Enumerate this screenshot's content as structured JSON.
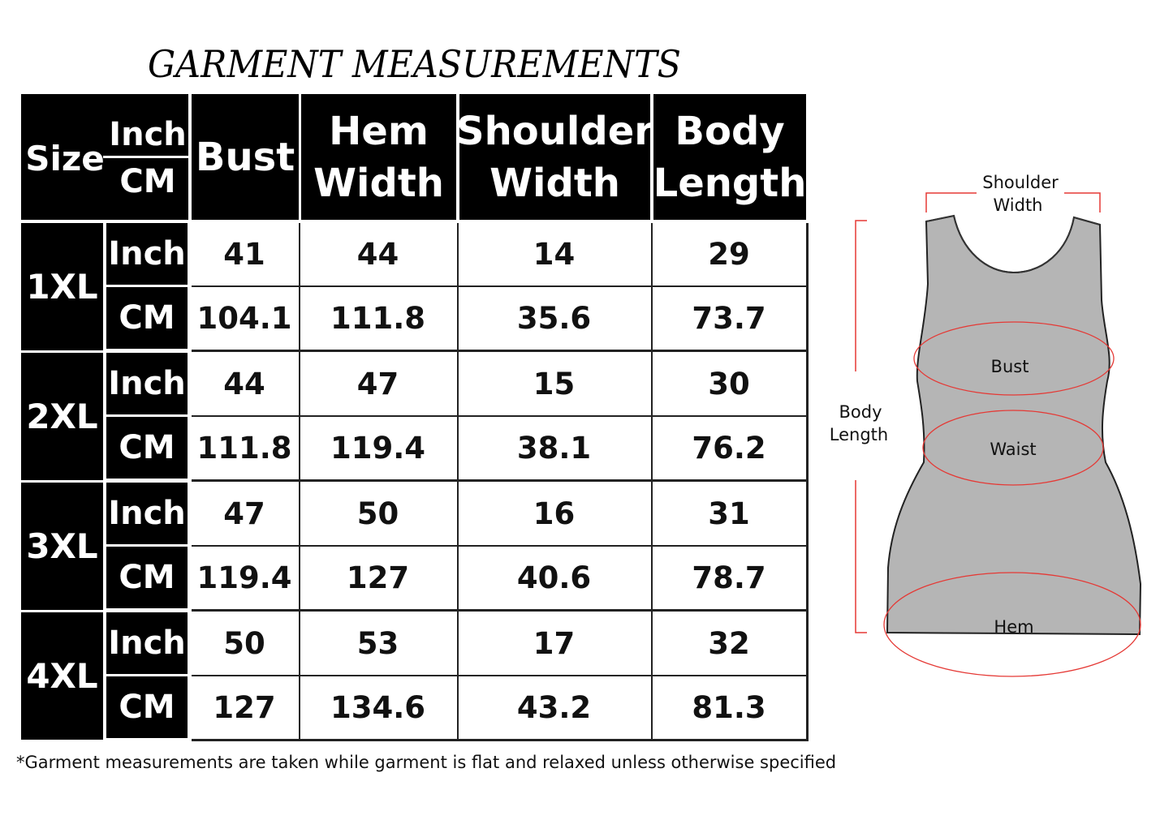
{
  "title": "GARMENT MEASUREMENTS",
  "table": {
    "header": {
      "size": "Size",
      "inch": "Inch",
      "cm": "CM",
      "columns": [
        "Bust",
        "Hem Width",
        "Shoulder Width",
        "Body Length"
      ]
    },
    "sizes": [
      {
        "size": "1XL",
        "rows": [
          {
            "unit": "Inch",
            "values": [
              "41",
              "44",
              "14",
              "29"
            ]
          },
          {
            "unit": "CM",
            "values": [
              "104.1",
              "111.8",
              "35.6",
              "73.7"
            ]
          }
        ]
      },
      {
        "size": "2XL",
        "rows": [
          {
            "unit": "Inch",
            "values": [
              "44",
              "47",
              "15",
              "30"
            ]
          },
          {
            "unit": "CM",
            "values": [
              "111.8",
              "119.4",
              "38.1",
              "76.2"
            ]
          }
        ]
      },
      {
        "size": "3XL",
        "rows": [
          {
            "unit": "Inch",
            "values": [
              "47",
              "50",
              "16",
              "31"
            ]
          },
          {
            "unit": "CM",
            "values": [
              "119.4",
              "127",
              "40.6",
              "78.7"
            ]
          }
        ]
      },
      {
        "size": "4XL",
        "rows": [
          {
            "unit": "Inch",
            "values": [
              "50",
              "53",
              "17",
              "32"
            ]
          },
          {
            "unit": "CM",
            "values": [
              "127",
              "134.6",
              "43.2",
              "81.3"
            ]
          }
        ]
      }
    ]
  },
  "note": "*Garment measurements are taken while garment is flat and relaxed unless otherwise specified",
  "diagram": {
    "shoulder_width": [
      "Shoulder",
      "Width"
    ],
    "body_length": [
      "Body",
      "Length"
    ],
    "bust": "Bust",
    "waist": "Waist",
    "hem": "Hem",
    "marker_color": "#e53935",
    "garment_color": "#b5b5b5"
  }
}
